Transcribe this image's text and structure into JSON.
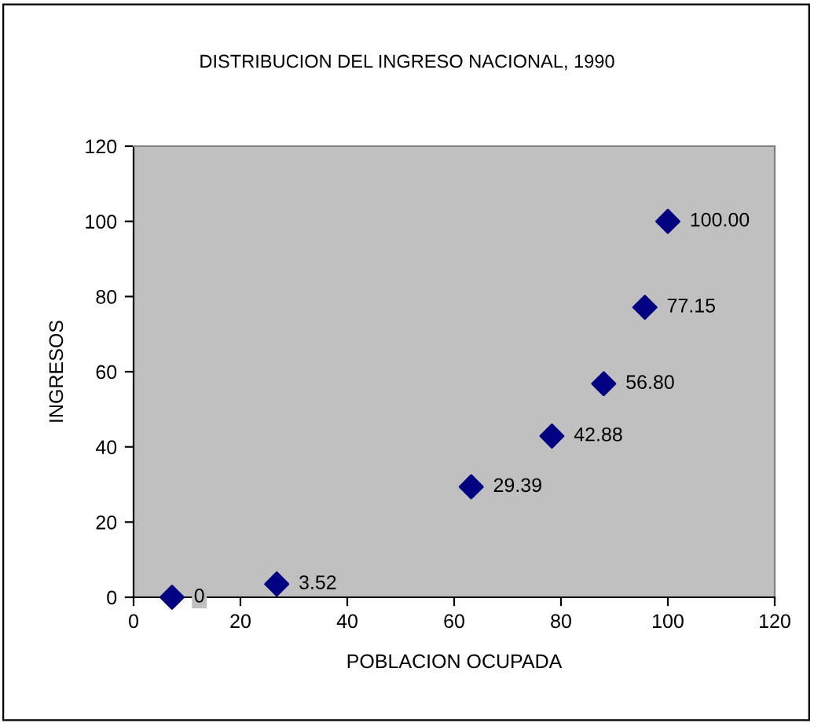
{
  "chart_data": {
    "type": "scatter",
    "title": "DISTRIBUCION DEL INGRESO NACIONAL, 1990",
    "xlabel": "POBLACION OCUPADA",
    "ylabel": "INGRESOS",
    "x": [
      7.2,
      26.8,
      63.2,
      78.3,
      88,
      95.7,
      100
    ],
    "series": [
      {
        "color": "#000080",
        "values": [
          0,
          3.52,
          29.39,
          42.88,
          56.8,
          77.15,
          100
        ],
        "value_labels": [
          "0",
          "3.52",
          "29.39",
          "42.88",
          "56.80",
          "77.15",
          "100.00"
        ]
      }
    ],
    "xlim": [
      0,
      120
    ],
    "xticks": [
      0,
      20,
      40,
      60,
      80,
      100,
      120
    ],
    "ylim": [
      0,
      120
    ],
    "yticks": [
      0,
      20,
      40,
      60,
      80,
      100,
      120
    ],
    "marker": "diamond",
    "grid": false,
    "legend": false
  }
}
